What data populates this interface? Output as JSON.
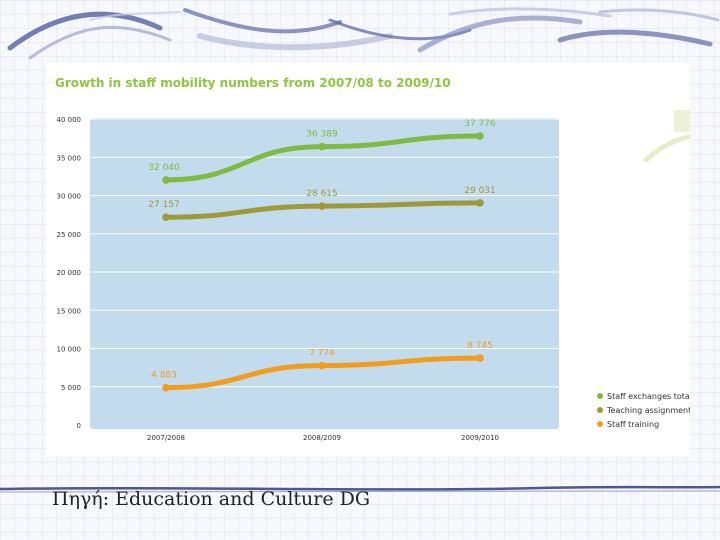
{
  "chart_data": {
    "type": "line",
    "title": "Growth in staff mobility numbers from 2007/08 to 2009/10",
    "categories": [
      "2007/2008",
      "2008/2009",
      "2009/2010"
    ],
    "ylim": [
      0,
      40000
    ],
    "yticks": [
      0,
      5000,
      10000,
      15000,
      20000,
      25000,
      30000,
      35000,
      40000
    ],
    "ytick_labels": [
      "0",
      "5 000",
      "10 000",
      "15 000",
      "20 000",
      "25 000",
      "30 000",
      "35 000",
      "40 000"
    ],
    "grid": true,
    "legend_position": "bottom-right",
    "series": [
      {
        "name": "Staff exchanges total",
        "color": "#7dbb42",
        "values": [
          32040,
          36389,
          37776
        ],
        "labels": [
          "32 040",
          "36 389",
          "37 776"
        ]
      },
      {
        "name": "Teaching assignments",
        "color": "#9e9a3a",
        "values": [
          27157,
          28615,
          29031
        ],
        "labels": [
          "27 157",
          "28 615",
          "29 031"
        ]
      },
      {
        "name": "Staff training",
        "color": "#f39c1e",
        "values": [
          4883,
          7774,
          8745
        ],
        "labels": [
          "4 883",
          "7 774",
          "8 745"
        ]
      }
    ],
    "colors": {
      "title": "#8dc63f",
      "plot_background": "#c3dced",
      "axis_text": "#333333"
    }
  },
  "caption": "Πηγή: Education and Culture DG"
}
